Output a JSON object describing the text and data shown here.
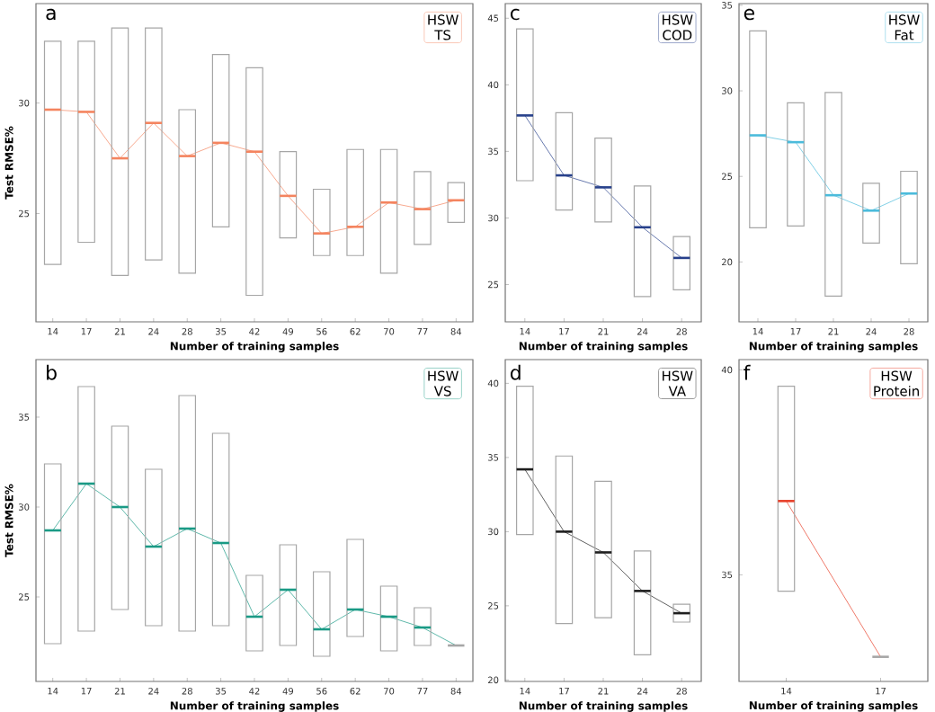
{
  "chart_data": [
    {
      "type": "box",
      "annotations": [
        "a",
        "HSW TS"
      ],
      "xlabel": "Number of training samples",
      "ylabel": "Test RMSE%",
      "categories": [
        "14",
        "17",
        "21",
        "24",
        "28",
        "35",
        "42",
        "49",
        "56",
        "62",
        "70",
        "77",
        "84"
      ],
      "ylim": [
        20.1,
        34.5
      ],
      "yticks": [
        25,
        30
      ],
      "series": [
        {
          "type": "line",
          "color": "#f4845f",
          "values": [
            29.7,
            29.6,
            27.5,
            29.1,
            27.6,
            28.2,
            27.8,
            25.8,
            24.1,
            24.4,
            25.5,
            25.2,
            25.6
          ]
        },
        {
          "color": "#a6a6a6",
          "boxes": [
            {
              "low": 22.7,
              "q1": 22.7,
              "median": 29.7,
              "q3": 32.8,
              "high": 32.8
            },
            {
              "low": 23.7,
              "q1": 23.7,
              "median": 29.6,
              "q3": 32.8,
              "high": 32.8
            },
            {
              "low": 22.2,
              "q1": 22.2,
              "median": 27.5,
              "q3": 33.4,
              "high": 33.4
            },
            {
              "low": 22.9,
              "q1": 22.9,
              "median": 29.1,
              "q3": 33.4,
              "high": 33.4
            },
            {
              "low": 22.3,
              "q1": 22.3,
              "median": 27.6,
              "q3": 29.7,
              "high": 29.7
            },
            {
              "low": 24.4,
              "q1": 24.4,
              "median": 28.2,
              "q3": 32.2,
              "high": 32.2
            },
            {
              "low": 21.3,
              "q1": 21.3,
              "median": 27.8,
              "q3": 31.6,
              "high": 31.6
            },
            {
              "low": 23.9,
              "q1": 23.9,
              "median": 25.8,
              "q3": 27.8,
              "high": 27.8
            },
            {
              "low": 23.1,
              "q1": 23.1,
              "median": 24.1,
              "q3": 26.1,
              "high": 26.1
            },
            {
              "low": 23.1,
              "q1": 23.1,
              "median": 24.4,
              "q3": 27.9,
              "high": 27.9
            },
            {
              "low": 22.3,
              "q1": 22.3,
              "median": 25.5,
              "q3": 27.9,
              "high": 27.9
            },
            {
              "low": 23.6,
              "q1": 23.6,
              "median": 25.2,
              "q3": 26.9,
              "high": 26.9
            },
            {
              "low": 24.6,
              "q1": 24.6,
              "median": 25.6,
              "q3": 26.4,
              "high": 26.4
            }
          ]
        }
      ]
    },
    {
      "type": "box",
      "annotations": [
        "c",
        "HSW COD"
      ],
      "xlabel": "Number of training samples",
      "categories": [
        "14",
        "17",
        "21",
        "24",
        "28"
      ],
      "ylim": [
        22.2,
        46.1
      ],
      "yticks": [
        25,
        30,
        35,
        40,
        45
      ],
      "series": [
        {
          "type": "line",
          "color": "#27408b",
          "values": [
            37.7,
            33.2,
            32.3,
            29.3,
            27.0
          ]
        },
        {
          "color": "#a6a6a6",
          "boxes": [
            {
              "low": 32.8,
              "q1": 32.8,
              "median": 37.7,
              "q3": 44.2,
              "high": 44.2
            },
            {
              "low": 30.6,
              "q1": 30.6,
              "median": 33.2,
              "q3": 37.9,
              "high": 37.9
            },
            {
              "low": 29.7,
              "q1": 29.7,
              "median": 32.3,
              "q3": 36.0,
              "high": 36.0
            },
            {
              "low": 24.1,
              "q1": 24.1,
              "median": 29.3,
              "q3": 32.4,
              "high": 32.4
            },
            {
              "low": 24.6,
              "q1": 24.6,
              "median": 27.0,
              "q3": 28.6,
              "high": 28.6
            }
          ]
        }
      ]
    },
    {
      "type": "box",
      "annotations": [
        "e",
        "HSW Fat"
      ],
      "xlabel": "Number of training samples",
      "categories": [
        "14",
        "17",
        "21",
        "24",
        "28"
      ],
      "ylim": [
        16.5,
        35.1
      ],
      "yticks": [
        20,
        25,
        30,
        35
      ],
      "series": [
        {
          "type": "line",
          "color": "#4bbbdb",
          "values": [
            27.4,
            27.0,
            23.9,
            23.0,
            24.0
          ]
        },
        {
          "color": "#a6a6a6",
          "boxes": [
            {
              "low": 22.0,
              "q1": 22.0,
              "median": 27.4,
              "q3": 33.5,
              "high": 33.5
            },
            {
              "low": 22.1,
              "q1": 22.1,
              "median": 27.0,
              "q3": 29.3,
              "high": 29.3
            },
            {
              "low": 18.0,
              "q1": 18.0,
              "median": 23.9,
              "q3": 29.9,
              "high": 29.9
            },
            {
              "low": 21.1,
              "q1": 21.1,
              "median": 23.0,
              "q3": 24.6,
              "high": 24.6
            },
            {
              "low": 19.9,
              "q1": 19.9,
              "median": 24.0,
              "q3": 25.3,
              "high": 25.3
            }
          ]
        }
      ]
    },
    {
      "type": "box",
      "annotations": [
        "b",
        "HSW VS"
      ],
      "xlabel": "Number of training samples",
      "ylabel": "Test RMSE%",
      "categories": [
        "14",
        "17",
        "21",
        "24",
        "28",
        "35",
        "42",
        "49",
        "56",
        "62",
        "70",
        "77",
        "84"
      ],
      "ylim": [
        20.3,
        38.2
      ],
      "yticks": [
        25,
        30,
        35
      ],
      "series": [
        {
          "type": "line",
          "color": "#1a9a85",
          "values": [
            28.7,
            31.3,
            30.0,
            27.8,
            28.8,
            28.0,
            23.9,
            25.4,
            23.2,
            24.3,
            23.9,
            23.3,
            22.3
          ]
        },
        {
          "color": "#a6a6a6",
          "boxes": [
            {
              "low": 22.4,
              "q1": 22.4,
              "median": 28.7,
              "q3": 32.4,
              "high": 32.4
            },
            {
              "low": 23.1,
              "q1": 23.1,
              "median": 31.3,
              "q3": 36.7,
              "high": 36.7
            },
            {
              "low": 24.3,
              "q1": 24.3,
              "median": 30.0,
              "q3": 34.5,
              "high": 34.5
            },
            {
              "low": 23.4,
              "q1": 23.4,
              "median": 27.8,
              "q3": 32.1,
              "high": 32.1
            },
            {
              "low": 23.1,
              "q1": 23.1,
              "median": 28.8,
              "q3": 36.2,
              "high": 36.2
            },
            {
              "low": 23.4,
              "q1": 23.4,
              "median": 28.0,
              "q3": 34.1,
              "high": 34.1
            },
            {
              "low": 22.0,
              "q1": 22.0,
              "median": 23.9,
              "q3": 26.2,
              "high": 26.2
            },
            {
              "low": 22.3,
              "q1": 22.3,
              "median": 25.4,
              "q3": 27.9,
              "high": 27.9
            },
            {
              "low": 21.7,
              "q1": 21.7,
              "median": 23.2,
              "q3": 26.4,
              "high": 26.4
            },
            {
              "low": 22.8,
              "q1": 22.8,
              "median": 24.3,
              "q3": 28.2,
              "high": 28.2
            },
            {
              "low": 22.0,
              "q1": 22.0,
              "median": 23.9,
              "q3": 25.6,
              "high": 25.6
            },
            {
              "low": 22.3,
              "q1": 22.3,
              "median": 23.3,
              "q3": 24.4,
              "high": 24.4
            },
            {
              "low": 22.3,
              "q1": 22.3,
              "median": 22.3,
              "q3": 22.3,
              "high": 22.3
            }
          ]
        }
      ]
    },
    {
      "type": "box",
      "annotations": [
        "d",
        "HSW VA"
      ],
      "xlabel": "Number of training samples",
      "categories": [
        "14",
        "17",
        "21",
        "24",
        "28"
      ],
      "ylim": [
        19.9,
        41.6
      ],
      "yticks": [
        20,
        25,
        30,
        35,
        40
      ],
      "series": [
        {
          "type": "line",
          "color": "#1e1e1e",
          "values": [
            34.2,
            30.0,
            28.6,
            26.0,
            24.5
          ]
        },
        {
          "color": "#a6a6a6",
          "boxes": [
            {
              "low": 29.8,
              "q1": 29.8,
              "median": 34.2,
              "q3": 39.8,
              "high": 39.8
            },
            {
              "low": 23.8,
              "q1": 23.8,
              "median": 30.0,
              "q3": 35.1,
              "high": 35.1
            },
            {
              "low": 24.2,
              "q1": 24.2,
              "median": 28.6,
              "q3": 33.4,
              "high": 33.4
            },
            {
              "low": 21.7,
              "q1": 21.7,
              "median": 26.0,
              "q3": 28.7,
              "high": 28.7
            },
            {
              "low": 23.9,
              "q1": 23.9,
              "median": 24.5,
              "q3": 25.1,
              "high": 25.1
            }
          ]
        }
      ]
    },
    {
      "type": "box",
      "annotations": [
        "f",
        "HSW Protein"
      ],
      "xlabel": "Number of training samples",
      "categories": [
        "14",
        "17"
      ],
      "ylim": [
        32.4,
        40.25
      ],
      "yticks": [
        35,
        40
      ],
      "series": [
        {
          "type": "line",
          "color": "#e8402a",
          "values": [
            36.8,
            33.0
          ]
        },
        {
          "color": "#a6a6a6",
          "boxes": [
            {
              "low": 34.6,
              "q1": 34.6,
              "median": 36.8,
              "q3": 39.6,
              "high": 39.6
            },
            {
              "low": 33.0,
              "q1": 33.0,
              "median": 33.0,
              "q3": 33.0,
              "high": 33.0
            }
          ]
        }
      ]
    }
  ]
}
